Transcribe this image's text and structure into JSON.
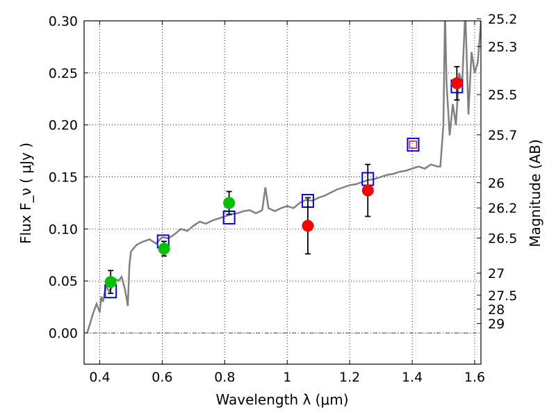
{
  "chart_data": {
    "type": "scatter",
    "xlabel": "Wavelength  λ (μm)",
    "ylabel_left": "Flux  F_ν  ( μJy )",
    "ylabel_right": "Magnitude (AB)",
    "xlim": [
      0.35,
      1.62
    ],
    "ylim": [
      -0.03,
      0.3
    ],
    "grid": true,
    "x_ticks": [
      0.4,
      0.6,
      0.8,
      1.0,
      1.2,
      1.4,
      1.6
    ],
    "x_tick_labels": [
      "0.4",
      "0.6",
      "0.8",
      "1",
      "1.2",
      "1.4",
      "1.6"
    ],
    "y_ticks": [
      0.0,
      0.05,
      0.1,
      0.15,
      0.2,
      0.25,
      0.3
    ],
    "y_tick_labels": [
      "0.00",
      "0.05",
      "0.10",
      "0.15",
      "0.20",
      "0.25",
      "0.30"
    ],
    "right_ticks": [
      {
        "label": "25.2",
        "flux": 0.302
      },
      {
        "label": "25.3",
        "flux": 0.2754
      },
      {
        "label": "25.5",
        "flux": 0.2291
      },
      {
        "label": "25.7",
        "flux": 0.1905
      },
      {
        "label": "26",
        "flux": 0.1445
      },
      {
        "label": "26.2",
        "flux": 0.1202
      },
      {
        "label": "26.5",
        "flux": 0.0912
      },
      {
        "label": "27",
        "flux": 0.0575
      },
      {
        "label": "27.5",
        "flux": 0.0363
      },
      {
        "label": "28",
        "flux": 0.0229
      },
      {
        "label": "29",
        "flux": 0.0091
      }
    ],
    "colors": {
      "model": "#808080",
      "green": "#00c000",
      "red": "#ff0000",
      "box": "#0000ff",
      "errorbar": "#000000"
    },
    "model_spectrum": {
      "x": [
        0.36,
        0.37,
        0.38,
        0.39,
        0.4,
        0.405,
        0.41,
        0.42,
        0.43,
        0.44,
        0.45,
        0.46,
        0.47,
        0.48,
        0.485,
        0.49,
        0.495,
        0.5,
        0.51,
        0.52,
        0.54,
        0.56,
        0.58,
        0.6,
        0.62,
        0.64,
        0.66,
        0.68,
        0.7,
        0.72,
        0.74,
        0.76,
        0.78,
        0.8,
        0.82,
        0.84,
        0.86,
        0.88,
        0.9,
        0.92,
        0.93,
        0.94,
        0.96,
        0.98,
        1.0,
        1.02,
        1.04,
        1.06,
        1.08,
        1.1,
        1.12,
        1.14,
        1.16,
        1.18,
        1.2,
        1.22,
        1.24,
        1.26,
        1.28,
        1.3,
        1.32,
        1.34,
        1.36,
        1.38,
        1.4,
        1.42,
        1.44,
        1.46,
        1.48,
        1.49,
        1.5,
        1.505,
        1.51,
        1.52,
        1.53,
        1.54,
        1.55,
        1.56,
        1.57,
        1.58,
        1.59,
        1.6,
        1.61,
        1.62
      ],
      "y": [
        0.0,
        0.01,
        0.02,
        0.028,
        0.02,
        0.035,
        0.03,
        0.045,
        0.04,
        0.045,
        0.052,
        0.05,
        0.054,
        0.043,
        0.035,
        0.026,
        0.065,
        0.078,
        0.082,
        0.085,
        0.088,
        0.09,
        0.086,
        0.092,
        0.091,
        0.095,
        0.1,
        0.098,
        0.103,
        0.107,
        0.105,
        0.108,
        0.11,
        0.112,
        0.114,
        0.115,
        0.117,
        0.118,
        0.115,
        0.118,
        0.14,
        0.12,
        0.117,
        0.12,
        0.122,
        0.12,
        0.125,
        0.128,
        0.127,
        0.13,
        0.132,
        0.135,
        0.138,
        0.14,
        0.142,
        0.143,
        0.145,
        0.147,
        0.148,
        0.15,
        0.152,
        0.153,
        0.155,
        0.156,
        0.158,
        0.16,
        0.158,
        0.162,
        0.16,
        0.16,
        0.2,
        0.32,
        0.24,
        0.19,
        0.22,
        0.2,
        0.25,
        0.24,
        0.32,
        0.21,
        0.27,
        0.25,
        0.26,
        0.3
      ]
    },
    "series": [
      {
        "marker": "square",
        "color": "#0000ff",
        "points": [
          {
            "x": 0.435,
            "y": 0.04
          },
          {
            "x": 0.603,
            "y": 0.088
          },
          {
            "x": 0.814,
            "y": 0.111
          },
          {
            "x": 1.066,
            "y": 0.127
          },
          {
            "x": 1.258,
            "y": 0.148
          },
          {
            "x": 1.403,
            "y": 0.181
          },
          {
            "x": 1.543,
            "y": 0.237
          }
        ]
      },
      {
        "marker": "circle",
        "color": "#00c000",
        "points": [
          {
            "x": 0.435,
            "y": 0.049,
            "err": 0.011
          },
          {
            "x": 0.606,
            "y": 0.081,
            "err": 0.007
          },
          {
            "x": 0.814,
            "y": 0.125,
            "err": 0.011
          }
        ]
      },
      {
        "marker": "circle",
        "color": "#ff0000",
        "points": [
          {
            "x": 1.066,
            "y": 0.103,
            "err": 0.027
          },
          {
            "x": 1.258,
            "y": 0.137,
            "err": 0.025
          },
          {
            "x": 1.403,
            "y": 0.18
          },
          {
            "x": 1.543,
            "y": 0.24,
            "err": 0.016
          }
        ]
      }
    ]
  }
}
